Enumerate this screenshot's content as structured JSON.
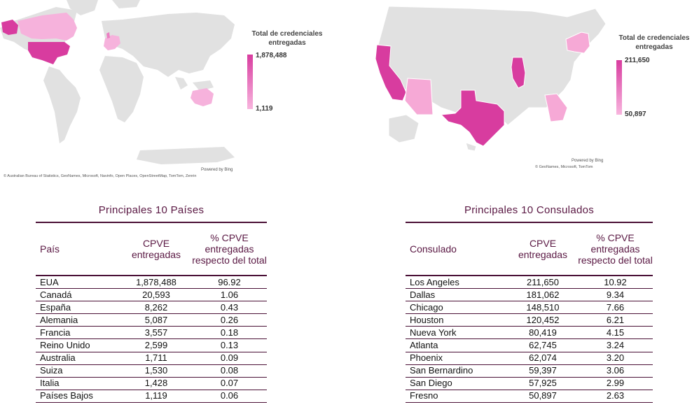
{
  "world_map": {
    "legend_title": "Total de credenciales entregadas",
    "legend_max": "1,878,488",
    "legend_min": "1,119",
    "powered_by": "Powered by Bing",
    "credits": "© Australian Bureau of Statistics, GeoNames, Microsoft, Navinfo, Open Places, OpenStreetMap, TomTom, Zenrin",
    "colors": {
      "land": "#e1e1e1",
      "high": "#d83c9f",
      "mid": "#ec7fc3",
      "low": "#f6b2dc"
    }
  },
  "us_map": {
    "legend_title": "Total de credenciales entregadas",
    "legend_max": "211,650",
    "legend_min": "50,897",
    "powered_by": "Powered by Bing",
    "credits": "© GeoNames, Microsoft, TomTom",
    "colors": {
      "land": "#e1e1e1",
      "high": "#d83c9f",
      "mid": "#e45cb2",
      "low": "#f6a9d6"
    }
  },
  "countries_table": {
    "title": "Principales 10 Países",
    "headers": [
      "País",
      "CPVE entregadas",
      "% CPVE entregadas respecto del total"
    ],
    "rows": [
      [
        "EUA",
        "1,878,488",
        "96.92"
      ],
      [
        "Canadá",
        "20,593",
        "1.06"
      ],
      [
        "España",
        "8,262",
        "0.43"
      ],
      [
        "Alemania",
        "5,087",
        "0.26"
      ],
      [
        "Francia",
        "3,557",
        "0.18"
      ],
      [
        "Reino Unido",
        "2,599",
        "0.13"
      ],
      [
        "Australia",
        "1,711",
        "0.09"
      ],
      [
        "Suiza",
        "1,530",
        "0.08"
      ],
      [
        "Italia",
        "1,428",
        "0.07"
      ],
      [
        "Países Bajos",
        "1,119",
        "0.06"
      ]
    ]
  },
  "consulates_table": {
    "title": "Principales 10 Consulados",
    "headers": [
      "Consulado",
      "CPVE entregadas",
      "% CPVE entregadas respecto del total"
    ],
    "rows": [
      [
        "Los Angeles",
        "211,650",
        "10.92"
      ],
      [
        "Dallas",
        "181,062",
        "9.34"
      ],
      [
        "Chicago",
        "148,510",
        "7.66"
      ],
      [
        "Houston",
        "120,452",
        "6.21"
      ],
      [
        "Nueva York",
        "80,419",
        "4.15"
      ],
      [
        "Atlanta",
        "62,745",
        "3.24"
      ],
      [
        "Phoenix",
        "62,074",
        "3.20"
      ],
      [
        "San Bernardino",
        "59,397",
        "3.06"
      ],
      [
        "San Diego",
        "57,925",
        "2.99"
      ],
      [
        "Fresno",
        "50,897",
        "2.63"
      ]
    ]
  }
}
